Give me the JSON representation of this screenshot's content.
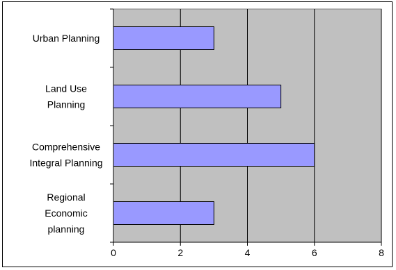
{
  "chart_data": {
    "type": "bar",
    "orientation": "horizontal",
    "categories": [
      [
        "Urban Planning"
      ],
      [
        "Land Use",
        "Planning"
      ],
      [
        "Comprehensive",
        "Integral Planning"
      ],
      [
        "Regional",
        "Economic",
        "planning"
      ]
    ],
    "values": [
      3,
      5,
      6,
      3
    ],
    "xlim": [
      0,
      8
    ],
    "x_ticks": [
      0,
      2,
      4,
      6,
      8
    ],
    "xlabel": "",
    "ylabel": "",
    "grid": "vertical",
    "legend": "none",
    "colors": {
      "plot_background": "#c0c0c0",
      "bar_fill": "#9999ff",
      "bar_stroke": "#000000",
      "gridline": "#000000"
    }
  }
}
